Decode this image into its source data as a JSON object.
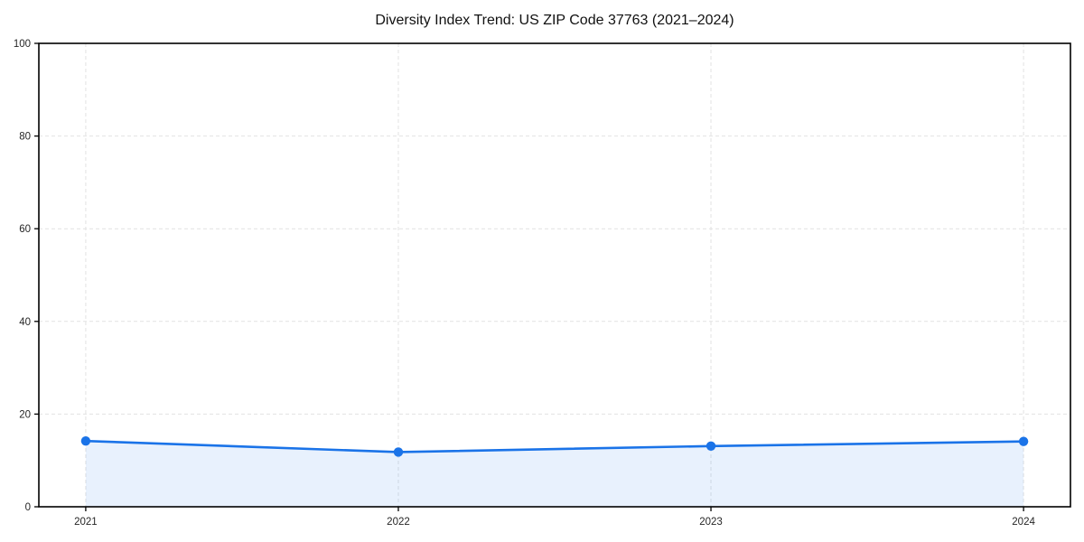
{
  "title": "Diversity Index Trend: US ZIP Code 37763 (2021–2024)",
  "chart_data": {
    "type": "area",
    "title": "Diversity Index Trend: US ZIP Code 37763 (2021–2024)",
    "x": [
      2021,
      2022,
      2023,
      2024
    ],
    "series": [
      {
        "name": "Diversity Index",
        "values": [
          14.2,
          11.8,
          13.1,
          14.1
        ]
      }
    ],
    "xlabel": "",
    "ylabel": "",
    "xlim": [
      2020.85,
      2024.15
    ],
    "ylim": [
      0,
      100
    ],
    "xticks": [
      2021,
      2022,
      2023,
      2024
    ],
    "yticks": [
      0,
      20,
      40,
      60,
      80,
      100
    ],
    "grid": true,
    "grid_style": "dashed",
    "legend": false,
    "colors": {
      "line": "#1a73e8",
      "marker": "#1a73e8",
      "fill": "#1a73e8",
      "fill_opacity": 0.1,
      "grid": "#e2e2e2",
      "axis": "#000000",
      "tick_label": "#262626",
      "background": "#ffffff"
    }
  }
}
